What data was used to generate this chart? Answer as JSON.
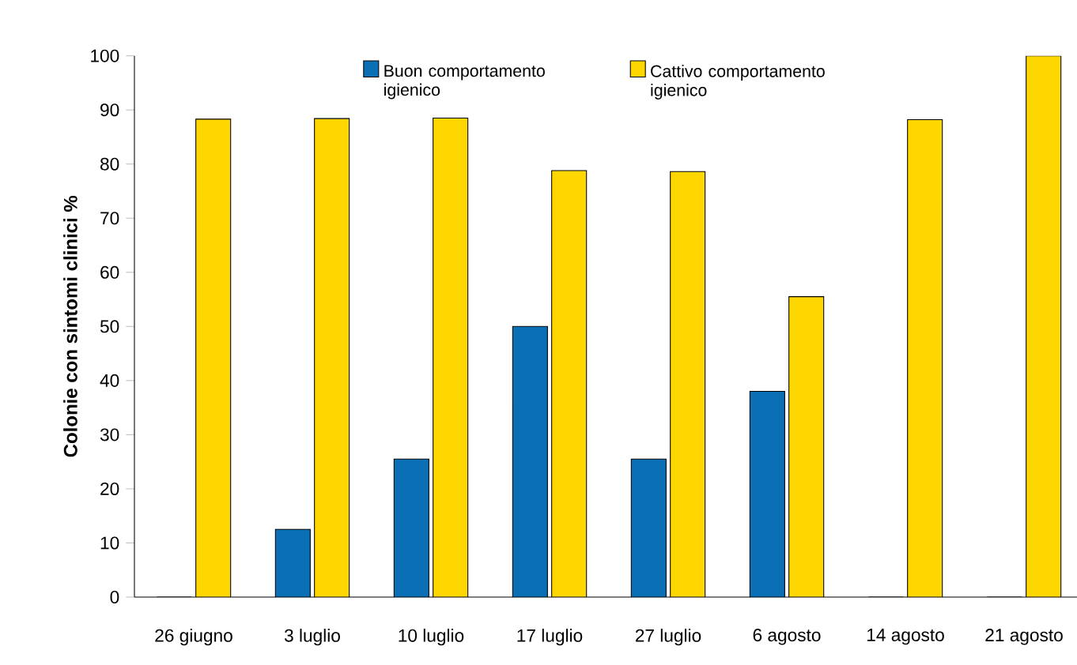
{
  "chart_data": {
    "type": "bar",
    "ylabel": "Colonie con sintomi clinici %",
    "categories": [
      "26 giugno",
      "3 luglio",
      "10 luglio",
      "17 luglio",
      "27 luglio",
      "6 agosto",
      "14 agosto",
      "21 agosto"
    ],
    "series": [
      {
        "name": "Buon comportamento igienico",
        "color": "#0a6fb5",
        "values": [
          0,
          12.5,
          25.5,
          50,
          25.5,
          38,
          0,
          0
        ]
      },
      {
        "name": "Cattivo comportamento igienico",
        "color": "#ffd700",
        "values": [
          88.3,
          88.4,
          88.5,
          78.8,
          78.6,
          55.5,
          88.2,
          100
        ]
      }
    ],
    "ylim": [
      0,
      100
    ],
    "yticks": [
      0,
      10,
      20,
      30,
      40,
      50,
      60,
      70,
      80,
      90,
      100
    ],
    "legend": "top",
    "grid": false
  }
}
